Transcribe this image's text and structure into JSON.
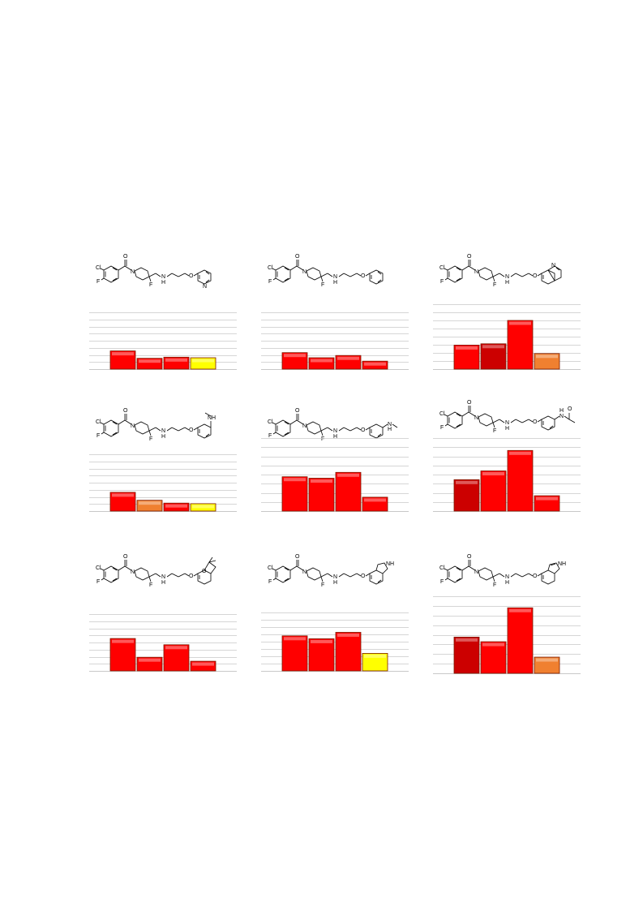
{
  "colors": {
    "red": "#ff0000",
    "dark_red": "#cc0000",
    "orange": "#f08030",
    "yellow": "#ffff00",
    "grid": "#c8c8c8"
  },
  "panels": [
    {
      "structure": {
        "atoms": {
          "cl": "Cl",
          "f1": "F",
          "o1": "O",
          "n1": "N",
          "f2": "F",
          "nh": "N",
          "h": "H",
          "o2": "O",
          "ring_n": "N"
        },
        "tail": "pyridine"
      },
      "chart_data": {
        "type": "bar",
        "ylim": [
          0,
          100
        ],
        "grid_lines": 8,
        "values": [
          32,
          19,
          21,
          20
        ],
        "colors": [
          "red",
          "red",
          "red",
          "yellow"
        ]
      }
    },
    {
      "structure": {
        "atoms": {
          "cl": "Cl",
          "f1": "F",
          "o1": "O",
          "n1": "N",
          "f2": "F",
          "nh": "N",
          "h": "H",
          "o2": "O"
        },
        "tail": "phenyl"
      },
      "chart_data": {
        "type": "bar",
        "ylim": [
          0,
          100
        ],
        "grid_lines": 8,
        "values": [
          29,
          20,
          24,
          14
        ],
        "colors": [
          "red",
          "red",
          "red",
          "red"
        ]
      }
    },
    {
      "structure": {
        "atoms": {
          "cl": "Cl",
          "f1": "F",
          "o1": "O",
          "n1": "N",
          "f2": "F",
          "nh": "N",
          "h": "H",
          "o2": "O",
          "ring_n": "N"
        },
        "tail": "quinoline"
      },
      "chart_data": {
        "type": "bar",
        "ylim": [
          0,
          100
        ],
        "grid_lines": 8,
        "values": [
          37,
          39,
          75,
          24
        ],
        "colors": [
          "red",
          "dark_red",
          "red",
          "orange"
        ]
      }
    },
    {
      "structure": {
        "atoms": {
          "cl": "Cl",
          "f1": "F",
          "o1": "O",
          "n1": "N",
          "f2": "F",
          "nh": "N",
          "h": "H",
          "o2": "O",
          "sub": "NH"
        },
        "tail": "methylaminophenyl"
      },
      "chart_data": {
        "type": "bar",
        "ylim": [
          0,
          100
        ],
        "grid_lines": 8,
        "values": [
          33,
          19,
          14,
          13
        ],
        "colors": [
          "red",
          "orange",
          "red",
          "yellow"
        ]
      }
    },
    {
      "structure": {
        "atoms": {
          "cl": "Cl",
          "f1": "F",
          "o1": "O",
          "n1": "N",
          "f2": "F",
          "nh": "N",
          "h": "H",
          "o2": "O",
          "sub": "N",
          "sub_h": "H"
        },
        "tail": "meta-methylaminophenyl"
      },
      "chart_data": {
        "type": "bar",
        "ylim": [
          0,
          100
        ],
        "grid_lines": 8,
        "values": [
          47,
          45,
          53,
          19
        ],
        "colors": [
          "red",
          "red",
          "red",
          "red"
        ]
      }
    },
    {
      "structure": {
        "atoms": {
          "cl": "Cl",
          "f1": "F",
          "o1": "O",
          "n1": "N",
          "f2": "F",
          "nh": "N",
          "h": "H",
          "o2": "O",
          "sub": "N",
          "sub_h": "H",
          "o3": "O"
        },
        "tail": "acetamidophenyl"
      },
      "chart_data": {
        "type": "bar",
        "ylim": [
          0,
          100
        ],
        "grid_lines": 8,
        "values": [
          43,
          55,
          83,
          21
        ],
        "colors": [
          "dark_red",
          "red",
          "red",
          "red"
        ]
      }
    },
    {
      "structure": {
        "atoms": {
          "cl": "Cl",
          "f1": "F",
          "o1": "O",
          "n1": "N",
          "f2": "F",
          "nh": "N",
          "h": "H",
          "o2": "O",
          "o3": "O"
        },
        "tail": "dimethyldihydrobenzofuran"
      },
      "chart_data": {
        "type": "bar",
        "ylim": [
          0,
          100
        ],
        "grid_lines": 8,
        "values": [
          57,
          24,
          46,
          17
        ],
        "colors": [
          "red",
          "red",
          "red",
          "red"
        ]
      }
    },
    {
      "structure": {
        "atoms": {
          "cl": "Cl",
          "f1": "F",
          "o1": "O",
          "n1": "N",
          "f2": "F",
          "nh": "N",
          "h": "H",
          "o2": "O",
          "sub": "NH"
        },
        "tail": "indoline"
      },
      "chart_data": {
        "type": "bar",
        "ylim": [
          0,
          100
        ],
        "grid_lines": 8,
        "values": [
          60,
          55,
          66,
          30
        ],
        "colors": [
          "red",
          "red",
          "red",
          "yellow"
        ]
      }
    },
    {
      "structure": {
        "atoms": {
          "cl": "Cl",
          "f1": "F",
          "o1": "O",
          "n1": "N",
          "f2": "F",
          "nh": "N",
          "h": "H",
          "o2": "O",
          "sub": "NH"
        },
        "tail": "indole"
      },
      "chart_data": {
        "type": "bar",
        "ylim": [
          0,
          100
        ],
        "grid_lines": 8,
        "values": [
          47,
          41,
          85,
          21
        ],
        "colors": [
          "dark_red",
          "red",
          "red",
          "orange"
        ]
      }
    }
  ]
}
